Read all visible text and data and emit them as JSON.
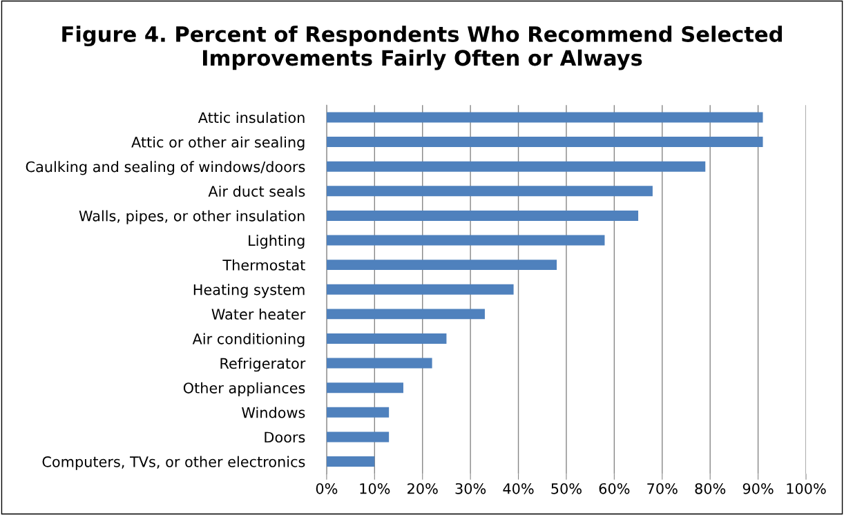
{
  "chart_data": {
    "type": "bar",
    "orientation": "horizontal",
    "title": "Figure 4. Percent of Respondents Who Recommend Selected\nImprovements Fairly Often or Always",
    "categories": [
      "Attic insulation",
      "Attic or other air sealing",
      "Caulking and sealing of windows/doors",
      "Air duct seals",
      "Walls, pipes, or other insulation",
      "Lighting",
      "Thermostat",
      "Heating system",
      "Water heater",
      "Air conditioning",
      "Refrigerator",
      "Other appliances",
      "Windows",
      "Doors",
      "Computers, TVs, or other electronics"
    ],
    "values": [
      91,
      91,
      79,
      68,
      65,
      58,
      48,
      39,
      33,
      25,
      22,
      16,
      13,
      13,
      10
    ],
    "color": "#4f81bd",
    "xlim": [
      0,
      100
    ],
    "xticks": [
      {
        "value": 0,
        "label": "0%"
      },
      {
        "value": 10,
        "label": "10%"
      },
      {
        "value": 20,
        "label": "20%"
      },
      {
        "value": 30,
        "label": "30%"
      },
      {
        "value": 40,
        "label": "40%"
      },
      {
        "value": 50,
        "label": "50%"
      },
      {
        "value": 60,
        "label": "60%"
      },
      {
        "value": 70,
        "label": "70%"
      },
      {
        "value": 80,
        "label": "80%"
      },
      {
        "value": 90,
        "label": "90%"
      },
      {
        "value": 100,
        "label": "100%"
      }
    ],
    "grid": "x"
  }
}
